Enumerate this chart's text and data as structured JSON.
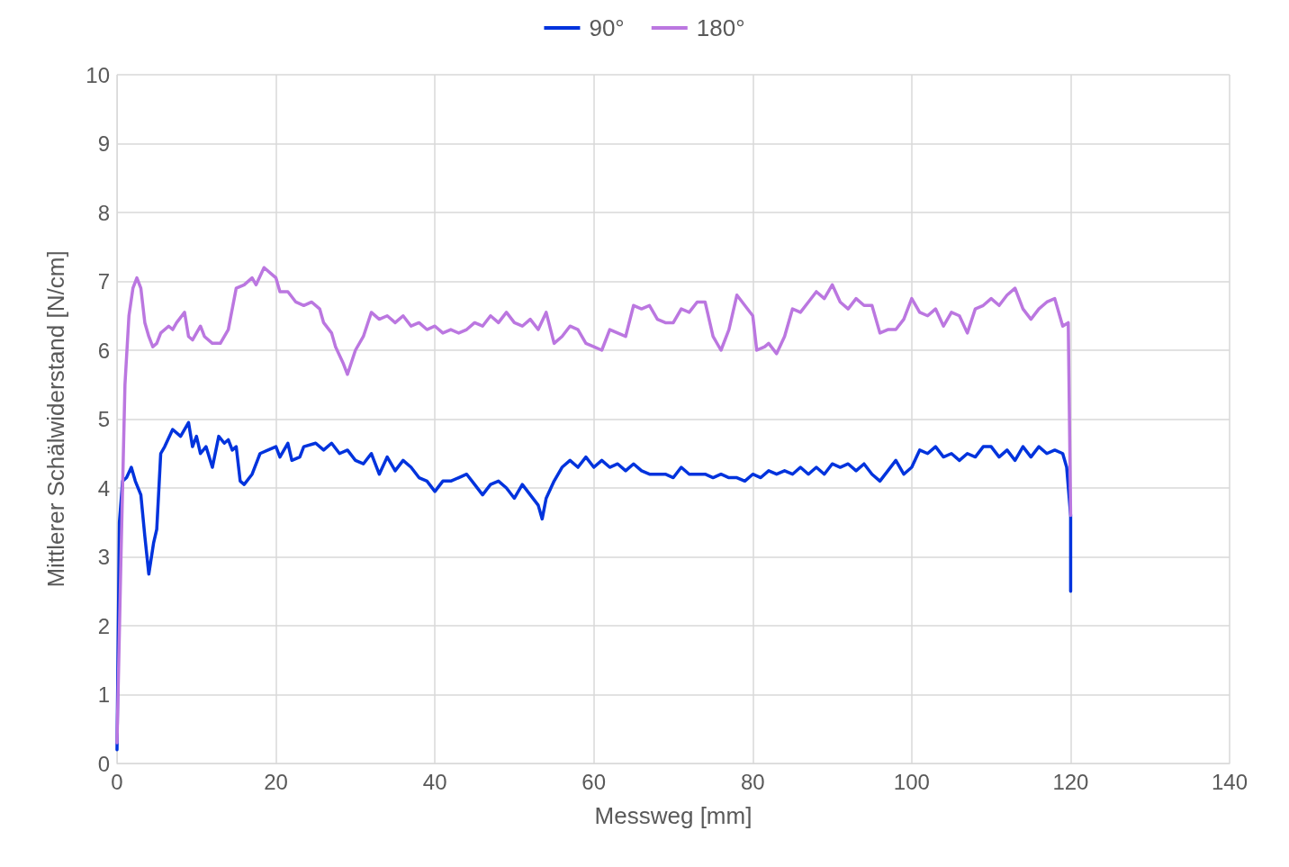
{
  "chart_data": {
    "type": "line",
    "xlabel": "Messweg [mm]",
    "ylabel": "Mittlerer Schälwiderstand [N/cm]",
    "xlim": [
      0,
      140
    ],
    "xticks": [
      0,
      20,
      40,
      60,
      80,
      100,
      120,
      140
    ],
    "ylim": [
      0,
      10
    ],
    "yticks": [
      0,
      1,
      2,
      3,
      4,
      5,
      6,
      7,
      8,
      9,
      10
    ],
    "grid": true,
    "legend": "top",
    "marker": "none",
    "line_style": "solid",
    "series": [
      {
        "name": "90°",
        "color": "#0033dd",
        "x": [
          0,
          0.3,
          0.7,
          1.2,
          1.8,
          2.3,
          3,
          3.5,
          4,
          4.6,
          5,
          5.5,
          6,
          7,
          8,
          9,
          9.5,
          10,
          10.5,
          11.2,
          12,
          12.8,
          13.5,
          14,
          14.5,
          15,
          15.5,
          16,
          17,
          18,
          19,
          20,
          20.5,
          21.5,
          22,
          23,
          23.5,
          25,
          26,
          27,
          28,
          29,
          30,
          31,
          32,
          33,
          34,
          35,
          36,
          37,
          38,
          39,
          40,
          41,
          42,
          43,
          44,
          45,
          46,
          47,
          48,
          49,
          50,
          51,
          52,
          53,
          53.5,
          54,
          55,
          56,
          57,
          58,
          59,
          60,
          61,
          62,
          63,
          64,
          65,
          66,
          67,
          68,
          69,
          70,
          71,
          72,
          73,
          74,
          75,
          76,
          77,
          78,
          79,
          80,
          81,
          82,
          83,
          84,
          85,
          86,
          87,
          88,
          89,
          90,
          91,
          92,
          93,
          94,
          95,
          96,
          97,
          98,
          99,
          100,
          101,
          102,
          103,
          104,
          105,
          106,
          107,
          108,
          109,
          110,
          111,
          112,
          113,
          114,
          115,
          116,
          117,
          118,
          119,
          119.5,
          120,
          120
        ],
        "values": [
          0.2,
          3.5,
          4.1,
          4.15,
          4.3,
          4.1,
          3.9,
          3.3,
          2.75,
          3.2,
          3.4,
          4.5,
          4.6,
          4.85,
          4.75,
          4.95,
          4.6,
          4.75,
          4.5,
          4.6,
          4.3,
          4.75,
          4.65,
          4.7,
          4.55,
          4.6,
          4.1,
          4.05,
          4.2,
          4.5,
          4.55,
          4.6,
          4.45,
          4.65,
          4.4,
          4.45,
          4.6,
          4.65,
          4.55,
          4.65,
          4.5,
          4.55,
          4.4,
          4.35,
          4.5,
          4.2,
          4.45,
          4.25,
          4.4,
          4.3,
          4.15,
          4.1,
          3.95,
          4.1,
          4.1,
          4.15,
          4.2,
          4.05,
          3.9,
          4.05,
          4.1,
          4,
          3.85,
          4.05,
          3.9,
          3.75,
          3.55,
          3.85,
          4.1,
          4.3,
          4.4,
          4.3,
          4.45,
          4.3,
          4.4,
          4.3,
          4.35,
          4.25,
          4.35,
          4.25,
          4.2,
          4.2,
          4.2,
          4.15,
          4.3,
          4.2,
          4.2,
          4.2,
          4.15,
          4.2,
          4.15,
          4.15,
          4.1,
          4.2,
          4.15,
          4.25,
          4.2,
          4.25,
          4.2,
          4.3,
          4.2,
          4.3,
          4.2,
          4.35,
          4.3,
          4.35,
          4.25,
          4.35,
          4.2,
          4.1,
          4.25,
          4.4,
          4.2,
          4.3,
          4.55,
          4.5,
          4.6,
          4.45,
          4.5,
          4.4,
          4.5,
          4.45,
          4.6,
          4.6,
          4.45,
          4.55,
          4.4,
          4.6,
          4.45,
          4.6,
          4.5,
          4.55,
          4.5,
          4.3,
          3.6,
          2.5
        ]
      },
      {
        "name": "180°",
        "color": "#bb77e0",
        "x": [
          0,
          0.5,
          1,
          1.5,
          2,
          2.5,
          3,
          3.5,
          4,
          4.5,
          5,
          5.5,
          6.5,
          7,
          7.5,
          8.5,
          9,
          9.5,
          10.5,
          11,
          12,
          13,
          14,
          15,
          16,
          17,
          17.5,
          18.5,
          19.5,
          20,
          20.5,
          21.5,
          22.5,
          23.5,
          24.5,
          25.5,
          26,
          27,
          27.5,
          28.5,
          29,
          30,
          31,
          32,
          33,
          34,
          35,
          36,
          37,
          38,
          39,
          40,
          41,
          42,
          43,
          44,
          45,
          46,
          47,
          48,
          49,
          50,
          51,
          52,
          53,
          54,
          55,
          56,
          57,
          58,
          59,
          60,
          61,
          62,
          63,
          64,
          65,
          66,
          67,
          68,
          69,
          70,
          71,
          72,
          73,
          74,
          75,
          76,
          77,
          78,
          79,
          80,
          80.5,
          81.5,
          82,
          83,
          84,
          85,
          86,
          87,
          88,
          89,
          90,
          91,
          92,
          93,
          94,
          95,
          96,
          97,
          98,
          99,
          100,
          101,
          102,
          103,
          104,
          105,
          106,
          107,
          108,
          109,
          110,
          111,
          112,
          113,
          114,
          115,
          116,
          117,
          118,
          119,
          119.7,
          120
        ],
        "values": [
          0.3,
          3,
          5.5,
          6.5,
          6.9,
          7.05,
          6.9,
          6.4,
          6.2,
          6.05,
          6.1,
          6.25,
          6.35,
          6.3,
          6.4,
          6.55,
          6.2,
          6.15,
          6.35,
          6.2,
          6.1,
          6.1,
          6.3,
          6.9,
          6.95,
          7.05,
          6.95,
          7.2,
          7.1,
          7.05,
          6.85,
          6.85,
          6.7,
          6.65,
          6.7,
          6.6,
          6.4,
          6.25,
          6.05,
          5.8,
          5.65,
          6,
          6.2,
          6.55,
          6.45,
          6.5,
          6.4,
          6.5,
          6.35,
          6.4,
          6.3,
          6.35,
          6.25,
          6.3,
          6.25,
          6.3,
          6.4,
          6.35,
          6.5,
          6.4,
          6.55,
          6.4,
          6.35,
          6.45,
          6.3,
          6.55,
          6.1,
          6.2,
          6.35,
          6.3,
          6.1,
          6.05,
          6,
          6.3,
          6.25,
          6.2,
          6.65,
          6.6,
          6.65,
          6.45,
          6.4,
          6.4,
          6.6,
          6.55,
          6.7,
          6.7,
          6.2,
          6,
          6.3,
          6.8,
          6.65,
          6.5,
          6,
          6.05,
          6.1,
          5.95,
          6.2,
          6.6,
          6.55,
          6.7,
          6.85,
          6.75,
          6.95,
          6.7,
          6.6,
          6.75,
          6.65,
          6.65,
          6.25,
          6.3,
          6.3,
          6.45,
          6.75,
          6.55,
          6.5,
          6.6,
          6.35,
          6.55,
          6.5,
          6.25,
          6.6,
          6.65,
          6.75,
          6.65,
          6.8,
          6.9,
          6.6,
          6.45,
          6.6,
          6.7,
          6.75,
          6.35,
          6.4,
          3.6
        ]
      }
    ]
  }
}
